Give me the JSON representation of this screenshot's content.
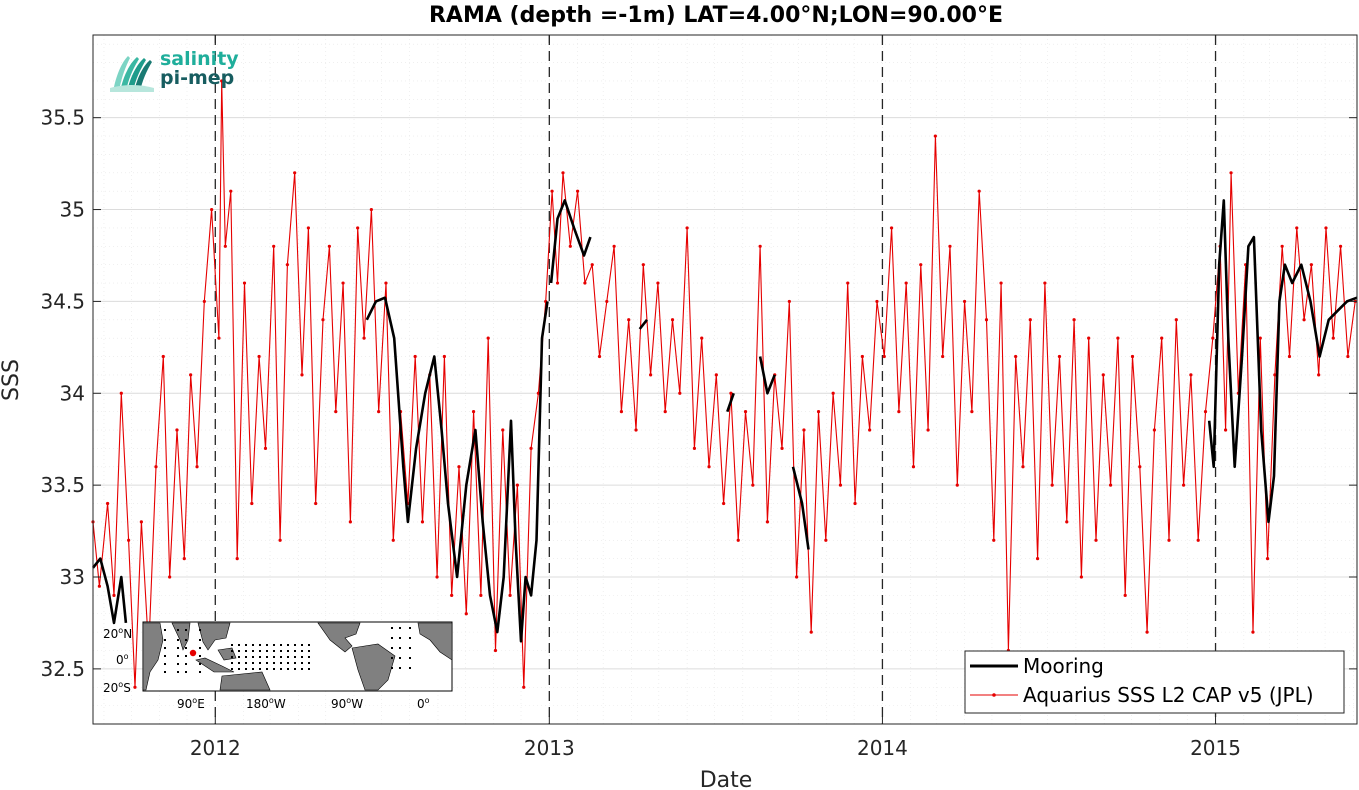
{
  "chart_data": {
    "type": "line",
    "title": "RAMA (depth =-1m) LAT=4.00°N;LON=90.00°E",
    "xlabel": "Date",
    "ylabel": "SSS",
    "xlim": [
      "2011-08-20",
      "2015-06-05"
    ],
    "ylim": [
      32.2,
      35.95
    ],
    "yticks": [
      32.5,
      33,
      33.5,
      34,
      34.5,
      35,
      35.5
    ],
    "ytick_labels": [
      "32.5",
      "33",
      "33.5",
      "34",
      "34.5",
      "35",
      "35.5"
    ],
    "xticks": [
      "2012-01-01",
      "2013-01-01",
      "2014-01-01",
      "2015-01-01"
    ],
    "xtick_labels": [
      "2012",
      "2013",
      "2014",
      "2015"
    ],
    "year_boundary_dashed_lines": [
      "2012-01-01",
      "2013-01-01",
      "2014-01-01",
      "2015-01-01"
    ],
    "grid": true,
    "legend_position": "bottom-right",
    "series": [
      {
        "name": "Mooring",
        "color": "#000000",
        "style": "thick-line",
        "segments": [
          [
            [
              "2011-08-20",
              33.05
            ],
            [
              "2011-08-28",
              33.1
            ],
            [
              "2011-09-05",
              32.95
            ],
            [
              "2011-09-12",
              32.75
            ],
            [
              "2011-09-20",
              33.0
            ],
            [
              "2011-09-25",
              32.75
            ]
          ],
          [
            [
              "2012-06-15",
              34.4
            ],
            [
              "2012-06-25",
              34.5
            ],
            [
              "2012-07-05",
              34.52
            ],
            [
              "2012-07-15",
              34.3
            ],
            [
              "2012-07-25",
              33.6
            ],
            [
              "2012-07-30",
              33.3
            ],
            [
              "2012-08-08",
              33.7
            ],
            [
              "2012-08-18",
              34.0
            ],
            [
              "2012-08-28",
              34.2
            ],
            [
              "2012-09-05",
              33.8
            ],
            [
              "2012-09-12",
              33.4
            ],
            [
              "2012-09-22",
              33.0
            ],
            [
              "2012-10-02",
              33.5
            ],
            [
              "2012-10-12",
              33.8
            ],
            [
              "2012-10-20",
              33.3
            ],
            [
              "2012-10-28",
              32.9
            ],
            [
              "2012-11-05",
              32.7
            ],
            [
              "2012-11-12",
              33.0
            ],
            [
              "2012-11-20",
              33.85
            ],
            [
              "2012-11-25",
              33.2
            ],
            [
              "2012-12-01",
              32.65
            ],
            [
              "2012-12-06",
              33.0
            ],
            [
              "2012-12-12",
              32.9
            ],
            [
              "2012-12-18",
              33.2
            ],
            [
              "2012-12-24",
              34.3
            ],
            [
              "2012-12-30",
              34.5
            ]
          ],
          [
            [
              "2013-01-03",
              34.6
            ],
            [
              "2013-01-10",
              34.95
            ],
            [
              "2013-01-18",
              35.05
            ],
            [
              "2013-01-28",
              34.9
            ],
            [
              "2013-02-08",
              34.75
            ],
            [
              "2013-02-15",
              34.85
            ]
          ],
          [
            [
              "2013-04-10",
              34.35
            ],
            [
              "2013-04-18",
              34.4
            ]
          ],
          [
            [
              "2013-07-15",
              33.9
            ],
            [
              "2013-07-22",
              34.0
            ]
          ],
          [
            [
              "2013-08-20",
              34.2
            ],
            [
              "2013-08-28",
              34.0
            ],
            [
              "2013-09-05",
              34.1
            ]
          ],
          [
            [
              "2013-09-25",
              33.6
            ],
            [
              "2013-10-05",
              33.4
            ],
            [
              "2013-10-12",
              33.15
            ]
          ],
          [
            [
              "2014-12-25",
              33.85
            ],
            [
              "2014-12-30",
              33.6
            ],
            [
              "2015-01-05",
              34.7
            ],
            [
              "2015-01-10",
              35.05
            ],
            [
              "2015-01-15",
              34.3
            ],
            [
              "2015-01-22",
              33.6
            ],
            [
              "2015-01-30",
              34.2
            ],
            [
              "2015-02-06",
              34.8
            ],
            [
              "2015-02-12",
              34.85
            ],
            [
              "2015-02-20",
              33.8
            ],
            [
              "2015-02-28",
              33.3
            ],
            [
              "2015-03-06",
              33.55
            ],
            [
              "2015-03-12",
              34.5
            ],
            [
              "2015-03-18",
              34.7
            ],
            [
              "2015-03-26",
              34.6
            ],
            [
              "2015-04-05",
              34.7
            ],
            [
              "2015-04-15",
              34.5
            ],
            [
              "2015-04-25",
              34.2
            ],
            [
              "2015-05-05",
              34.4
            ],
            [
              "2015-05-15",
              34.45
            ],
            [
              "2015-05-25",
              34.5
            ],
            [
              "2015-06-05",
              34.52
            ]
          ]
        ]
      },
      {
        "name": "Aquarius SSS L2 CAP v5 (JPL)",
        "color": "#e60000",
        "style": "thin-line-with-dot-markers",
        "points": [
          [
            "2011-08-20",
            33.3
          ],
          [
            "2011-08-27",
            32.95
          ],
          [
            "2011-09-05",
            33.4
          ],
          [
            "2011-09-12",
            32.9
          ],
          [
            "2011-09-20",
            34.0
          ],
          [
            "2011-09-28",
            33.2
          ],
          [
            "2011-10-05",
            32.4
          ],
          [
            "2011-10-12",
            33.3
          ],
          [
            "2011-10-20",
            32.6
          ],
          [
            "2011-10-28",
            33.6
          ],
          [
            "2011-11-05",
            34.2
          ],
          [
            "2011-11-12",
            33.0
          ],
          [
            "2011-11-20",
            33.8
          ],
          [
            "2011-11-28",
            33.1
          ],
          [
            "2011-12-05",
            34.1
          ],
          [
            "2011-12-12",
            33.6
          ],
          [
            "2011-12-20",
            34.5
          ],
          [
            "2011-12-28",
            35.0
          ],
          [
            "2012-01-05",
            34.3
          ],
          [
            "2012-01-08",
            35.7
          ],
          [
            "2012-01-12",
            34.8
          ],
          [
            "2012-01-18",
            35.1
          ],
          [
            "2012-01-25",
            33.1
          ],
          [
            "2012-02-02",
            34.6
          ],
          [
            "2012-02-10",
            33.4
          ],
          [
            "2012-02-18",
            34.2
          ],
          [
            "2012-02-25",
            33.7
          ],
          [
            "2012-03-05",
            34.8
          ],
          [
            "2012-03-12",
            33.2
          ],
          [
            "2012-03-20",
            34.7
          ],
          [
            "2012-03-28",
            35.2
          ],
          [
            "2012-04-05",
            34.1
          ],
          [
            "2012-04-12",
            34.9
          ],
          [
            "2012-04-20",
            33.4
          ],
          [
            "2012-04-28",
            34.4
          ],
          [
            "2012-05-05",
            34.8
          ],
          [
            "2012-05-12",
            33.9
          ],
          [
            "2012-05-20",
            34.6
          ],
          [
            "2012-05-28",
            33.3
          ],
          [
            "2012-06-05",
            34.9
          ],
          [
            "2012-06-12",
            34.3
          ],
          [
            "2012-06-20",
            35.0
          ],
          [
            "2012-06-28",
            33.9
          ],
          [
            "2012-07-06",
            34.6
          ],
          [
            "2012-07-14",
            33.2
          ],
          [
            "2012-07-22",
            33.9
          ],
          [
            "2012-07-30",
            33.4
          ],
          [
            "2012-08-07",
            34.2
          ],
          [
            "2012-08-15",
            33.3
          ],
          [
            "2012-08-23",
            34.1
          ],
          [
            "2012-08-31",
            33.0
          ],
          [
            "2012-09-08",
            34.2
          ],
          [
            "2012-09-16",
            32.9
          ],
          [
            "2012-09-24",
            33.6
          ],
          [
            "2012-10-02",
            32.8
          ],
          [
            "2012-10-10",
            33.9
          ],
          [
            "2012-10-18",
            32.9
          ],
          [
            "2012-10-26",
            34.3
          ],
          [
            "2012-11-03",
            32.6
          ],
          [
            "2012-11-11",
            33.8
          ],
          [
            "2012-11-19",
            32.9
          ],
          [
            "2012-11-27",
            33.5
          ],
          [
            "2012-12-04",
            32.4
          ],
          [
            "2012-12-12",
            33.7
          ],
          [
            "2012-12-20",
            34.0
          ],
          [
            "2012-12-28",
            34.5
          ],
          [
            "2013-01-04",
            35.1
          ],
          [
            "2013-01-10",
            34.6
          ],
          [
            "2013-01-16",
            35.2
          ],
          [
            "2013-01-24",
            34.8
          ],
          [
            "2013-02-01",
            35.1
          ],
          [
            "2013-02-09",
            34.6
          ],
          [
            "2013-02-17",
            34.7
          ],
          [
            "2013-02-25",
            34.2
          ],
          [
            "2013-03-05",
            34.5
          ],
          [
            "2013-03-13",
            34.8
          ],
          [
            "2013-03-21",
            33.9
          ],
          [
            "2013-03-29",
            34.4
          ],
          [
            "2013-04-06",
            33.8
          ],
          [
            "2013-04-14",
            34.7
          ],
          [
            "2013-04-22",
            34.1
          ],
          [
            "2013-04-30",
            34.6
          ],
          [
            "2013-05-08",
            33.9
          ],
          [
            "2013-05-16",
            34.4
          ],
          [
            "2013-05-24",
            34.0
          ],
          [
            "2013-06-01",
            34.9
          ],
          [
            "2013-06-09",
            33.7
          ],
          [
            "2013-06-17",
            34.3
          ],
          [
            "2013-06-25",
            33.6
          ],
          [
            "2013-07-03",
            34.1
          ],
          [
            "2013-07-11",
            33.4
          ],
          [
            "2013-07-19",
            34.0
          ],
          [
            "2013-07-27",
            33.2
          ],
          [
            "2013-08-04",
            33.9
          ],
          [
            "2013-08-12",
            33.5
          ],
          [
            "2013-08-20",
            34.8
          ],
          [
            "2013-08-28",
            33.3
          ],
          [
            "2013-09-05",
            34.1
          ],
          [
            "2013-09-13",
            33.7
          ],
          [
            "2013-09-21",
            34.5
          ],
          [
            "2013-09-29",
            33.0
          ],
          [
            "2013-10-07",
            33.8
          ],
          [
            "2013-10-15",
            32.7
          ],
          [
            "2013-10-23",
            33.9
          ],
          [
            "2013-10-31",
            33.2
          ],
          [
            "2013-11-08",
            34.0
          ],
          [
            "2013-11-16",
            33.5
          ],
          [
            "2013-11-24",
            34.6
          ],
          [
            "2013-12-02",
            33.4
          ],
          [
            "2013-12-10",
            34.2
          ],
          [
            "2013-12-18",
            33.8
          ],
          [
            "2013-12-26",
            34.5
          ],
          [
            "2014-01-03",
            34.2
          ],
          [
            "2014-01-11",
            34.9
          ],
          [
            "2014-01-19",
            33.9
          ],
          [
            "2014-01-27",
            34.6
          ],
          [
            "2014-02-04",
            33.6
          ],
          [
            "2014-02-12",
            34.7
          ],
          [
            "2014-02-20",
            33.8
          ],
          [
            "2014-02-28",
            35.4
          ],
          [
            "2014-03-08",
            34.2
          ],
          [
            "2014-03-16",
            34.8
          ],
          [
            "2014-03-24",
            33.5
          ],
          [
            "2014-04-01",
            34.5
          ],
          [
            "2014-04-09",
            33.9
          ],
          [
            "2014-04-17",
            35.1
          ],
          [
            "2014-04-25",
            34.4
          ],
          [
            "2014-05-03",
            33.2
          ],
          [
            "2014-05-11",
            34.6
          ],
          [
            "2014-05-19",
            32.6
          ],
          [
            "2014-05-27",
            34.2
          ],
          [
            "2014-06-04",
            33.6
          ],
          [
            "2014-06-12",
            34.4
          ],
          [
            "2014-06-20",
            33.1
          ],
          [
            "2014-06-28",
            34.6
          ],
          [
            "2014-07-06",
            33.5
          ],
          [
            "2014-07-14",
            34.2
          ],
          [
            "2014-07-22",
            33.3
          ],
          [
            "2014-07-30",
            34.4
          ],
          [
            "2014-08-07",
            33.0
          ],
          [
            "2014-08-15",
            34.3
          ],
          [
            "2014-08-23",
            33.2
          ],
          [
            "2014-08-31",
            34.1
          ],
          [
            "2014-09-08",
            33.5
          ],
          [
            "2014-09-16",
            34.3
          ],
          [
            "2014-09-24",
            32.9
          ],
          [
            "2014-10-02",
            34.2
          ],
          [
            "2014-10-10",
            33.6
          ],
          [
            "2014-10-18",
            32.7
          ],
          [
            "2014-10-26",
            33.8
          ],
          [
            "2014-11-03",
            34.3
          ],
          [
            "2014-11-11",
            33.2
          ],
          [
            "2014-11-19",
            34.4
          ],
          [
            "2014-11-27",
            33.5
          ],
          [
            "2014-12-05",
            34.1
          ],
          [
            "2014-12-13",
            33.2
          ],
          [
            "2014-12-21",
            33.9
          ],
          [
            "2014-12-29",
            34.3
          ],
          [
            "2015-01-06",
            34.8
          ],
          [
            "2015-01-12",
            33.8
          ],
          [
            "2015-01-18",
            35.2
          ],
          [
            "2015-01-26",
            34.0
          ],
          [
            "2015-02-03",
            34.7
          ],
          [
            "2015-02-11",
            32.7
          ],
          [
            "2015-02-19",
            34.3
          ],
          [
            "2015-02-27",
            33.1
          ],
          [
            "2015-03-07",
            34.1
          ],
          [
            "2015-03-15",
            34.8
          ],
          [
            "2015-03-23",
            34.2
          ],
          [
            "2015-03-31",
            34.9
          ],
          [
            "2015-04-08",
            34.4
          ],
          [
            "2015-04-16",
            34.7
          ],
          [
            "2015-04-24",
            34.1
          ],
          [
            "2015-05-02",
            34.9
          ],
          [
            "2015-05-10",
            34.3
          ],
          [
            "2015-05-18",
            34.8
          ],
          [
            "2015-05-26",
            34.2
          ],
          [
            "2015-06-03",
            34.5
          ]
        ]
      }
    ]
  },
  "inset_map": {
    "lat_labels": [
      "20",
      "N",
      "0",
      "",
      "20",
      "S"
    ],
    "lon_labels": [
      "90",
      "E",
      "180",
      "W",
      "90",
      "W",
      "0",
      ""
    ],
    "degree_mark": "o",
    "marker_color": "#e60000"
  },
  "logo": {
    "line1": "salinity",
    "line2": "pi-mep"
  }
}
